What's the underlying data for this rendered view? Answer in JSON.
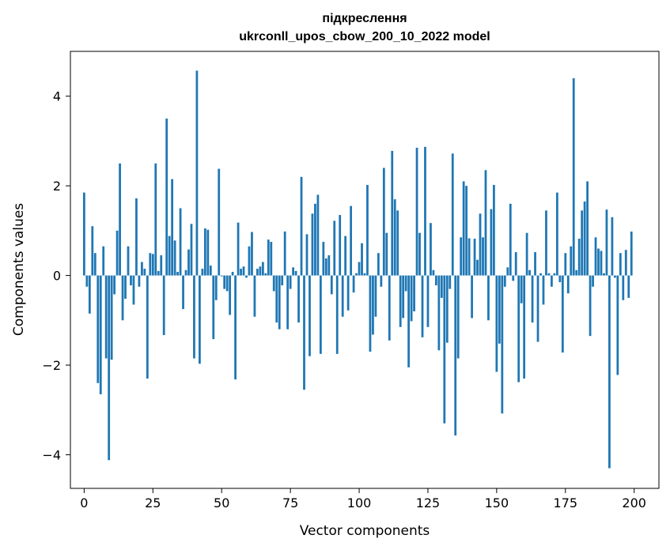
{
  "chart_data": {
    "type": "bar",
    "title_line1": "підкреслення",
    "title_line2": "ukrconll_upos_cbow_200_10_2022 model",
    "xlabel": "Vector components",
    "ylabel": "Components values",
    "xlim": [
      -5,
      209
    ],
    "ylim": [
      -4.75,
      5.0
    ],
    "xticks": [
      0,
      25,
      50,
      75,
      100,
      125,
      150,
      175,
      200
    ],
    "yticks": [
      -4,
      -2,
      0,
      2,
      4
    ],
    "ytick_labels": [
      "−4",
      "−2",
      "0",
      "2",
      "4"
    ],
    "bar_color": "#1f77b4",
    "x": [
      0,
      1,
      2,
      3,
      4,
      5,
      6,
      7,
      8,
      9,
      10,
      11,
      12,
      13,
      14,
      15,
      16,
      17,
      18,
      19,
      20,
      21,
      22,
      23,
      24,
      25,
      26,
      27,
      28,
      29,
      30,
      31,
      32,
      33,
      34,
      35,
      36,
      37,
      38,
      39,
      40,
      41,
      42,
      43,
      44,
      45,
      46,
      47,
      48,
      49,
      50,
      51,
      52,
      53,
      54,
      55,
      56,
      57,
      58,
      59,
      60,
      61,
      62,
      63,
      64,
      65,
      66,
      67,
      68,
      69,
      70,
      71,
      72,
      73,
      74,
      75,
      76,
      77,
      78,
      79,
      80,
      81,
      82,
      83,
      84,
      85,
      86,
      87,
      88,
      89,
      90,
      91,
      92,
      93,
      94,
      95,
      96,
      97,
      98,
      99,
      100,
      101,
      102,
      103,
      104,
      105,
      106,
      107,
      108,
      109,
      110,
      111,
      112,
      113,
      114,
      115,
      116,
      117,
      118,
      119,
      120,
      121,
      122,
      123,
      124,
      125,
      126,
      127,
      128,
      129,
      130,
      131,
      132,
      133,
      134,
      135,
      136,
      137,
      138,
      139,
      140,
      141,
      142,
      143,
      144,
      145,
      146,
      147,
      148,
      149,
      150,
      151,
      152,
      153,
      154,
      155,
      156,
      157,
      158,
      159,
      160,
      161,
      162,
      163,
      164,
      165,
      166,
      167,
      168,
      169,
      170,
      171,
      172,
      173,
      174,
      175,
      176,
      177,
      178,
      179,
      180,
      181,
      182,
      183,
      184,
      185,
      186,
      187,
      188,
      189,
      190,
      191,
      192,
      193,
      194,
      195,
      196,
      197,
      198,
      199
    ],
    "values": [
      1.85,
      -0.25,
      -0.85,
      1.1,
      0.5,
      -2.4,
      -2.65,
      0.65,
      -1.85,
      -4.12,
      -1.88,
      -0.42,
      1.0,
      2.5,
      -1.0,
      -0.52,
      0.65,
      -0.22,
      -0.65,
      1.72,
      -0.25,
      0.3,
      0.15,
      -2.3,
      0.5,
      0.48,
      2.5,
      0.1,
      0.45,
      -1.33,
      3.5,
      0.88,
      2.15,
      0.78,
      0.08,
      1.5,
      -0.75,
      0.12,
      0.58,
      1.15,
      -1.85,
      4.57,
      -1.97,
      0.15,
      1.05,
      1.02,
      0.22,
      -1.42,
      -0.55,
      2.38,
      -0.02,
      -0.3,
      -0.35,
      -0.88,
      0.08,
      -2.32,
      1.18,
      0.15,
      0.2,
      -0.05,
      0.65,
      0.97,
      -0.92,
      0.15,
      0.2,
      0.3,
      0.05,
      0.8,
      0.75,
      -0.35,
      -1.05,
      -1.2,
      -0.22,
      0.98,
      -1.2,
      -0.3,
      0.18,
      0.1,
      -1.05,
      2.2,
      -2.55,
      0.92,
      -1.8,
      1.38,
      1.6,
      1.8,
      -1.75,
      0.75,
      0.38,
      0.45,
      -0.42,
      1.22,
      -1.75,
      1.35,
      -0.92,
      0.88,
      -0.78,
      1.55,
      -0.38,
      0.05,
      0.3,
      0.72,
      0.05,
      2.02,
      -1.7,
      -1.32,
      -0.92,
      0.5,
      -0.25,
      2.4,
      0.95,
      -1.45,
      2.78,
      1.7,
      1.45,
      -1.15,
      -0.95,
      -0.35,
      -2.05,
      -1.02,
      -0.8,
      2.85,
      0.95,
      -1.38,
      2.87,
      -1.15,
      1.17,
      0.12,
      -0.22,
      -1.67,
      -0.5,
      -3.3,
      -1.5,
      -0.3,
      2.72,
      -3.57,
      -1.85,
      0.85,
      2.1,
      2.0,
      0.83,
      -0.95,
      0.82,
      0.35,
      1.38,
      0.85,
      2.35,
      -1.0,
      1.48,
      2.02,
      -2.15,
      -1.52,
      -3.08,
      -0.25,
      0.18,
      1.6,
      -0.12,
      0.52,
      -2.38,
      -0.62,
      -2.3,
      0.95,
      0.12,
      -1.05,
      0.52,
      -1.48,
      0.05,
      -0.65,
      1.45,
      0.05,
      -0.25,
      0.05,
      1.85,
      -0.15,
      -1.72,
      0.5,
      -0.4,
      0.65,
      4.4,
      0.12,
      0.82,
      1.45,
      1.65,
      2.1,
      -1.35,
      -0.25,
      0.85,
      0.6,
      0.55,
      0.05,
      1.47,
      -4.3,
      1.3,
      -0.05,
      -2.22,
      0.5,
      -0.55,
      0.57,
      -0.5,
      0.98
    ]
  }
}
